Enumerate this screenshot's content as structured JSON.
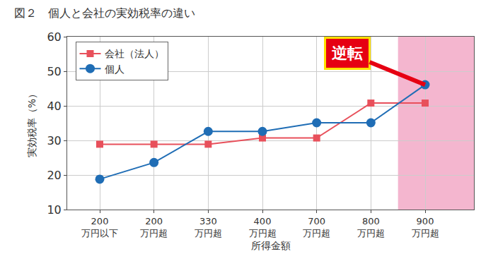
{
  "chart_data": {
    "type": "line",
    "title": "図２　個人と会社の実効税率の違い",
    "x_label": "所得金額",
    "y_label": "実効税率（%）",
    "categories": [
      "200\n万円以下",
      "200\n万円超",
      "330\n万円超",
      "400\n万円超",
      "700\n万円超",
      "800\n万円超",
      "900\n万円超"
    ],
    "series": [
      {
        "name": "会社（法人）",
        "color": "#e8505b",
        "marker": "square",
        "values": [
          28.9,
          28.9,
          28.9,
          30.7,
          30.7,
          40.8,
          40.8
        ]
      },
      {
        "name": "個人",
        "color": "#1f6db5",
        "marker": "circle",
        "values": [
          18.8,
          23.6,
          32.6,
          32.6,
          35.1,
          35.1,
          46.1
        ]
      }
    ],
    "annotations": [
      {
        "text": "逆転",
        "category": "900\n万円超",
        "color": "#e60012"
      }
    ],
    "ylim": [
      10,
      60
    ],
    "yticks": [
      10,
      20,
      30,
      40,
      50,
      60
    ],
    "grid": true,
    "legend": "top-left"
  }
}
